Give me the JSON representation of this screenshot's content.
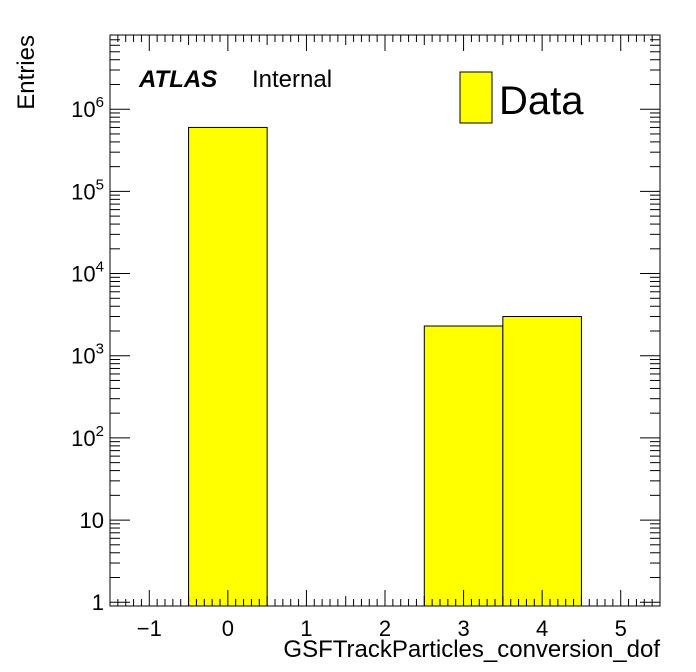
{
  "chart_data": {
    "type": "bar",
    "xlabel": "GSFTrackParticles_conversion_dof",
    "ylabel": "Entries",
    "xlim": [
      -1.5,
      5.5
    ],
    "ylim": [
      0.9,
      8000000
    ],
    "yscale": "log",
    "x_ticks": [
      -1,
      0,
      1,
      2,
      3,
      4,
      5
    ],
    "y_ticks": [
      {
        "value": 1,
        "base": "1",
        "exp": ""
      },
      {
        "value": 10,
        "base": "10",
        "exp": ""
      },
      {
        "value": 100,
        "base": "10",
        "exp": "2"
      },
      {
        "value": 1000,
        "base": "10",
        "exp": "3"
      },
      {
        "value": 10000,
        "base": "10",
        "exp": "4"
      },
      {
        "value": 100000,
        "base": "10",
        "exp": "5"
      },
      {
        "value": 1000000,
        "base": "10",
        "exp": "6"
      }
    ],
    "bin_width": 1,
    "series": [
      {
        "name": "Data",
        "color": "#ffff00",
        "edge_color": "#000000",
        "bins": [
          {
            "x": 0,
            "value": 600000
          },
          {
            "x": 3,
            "value": 2300
          },
          {
            "x": 4,
            "value": 3000
          }
        ]
      }
    ],
    "legend_position": "top-right",
    "annotation": {
      "atlas": "ATLAS",
      "status": "Internal"
    }
  }
}
